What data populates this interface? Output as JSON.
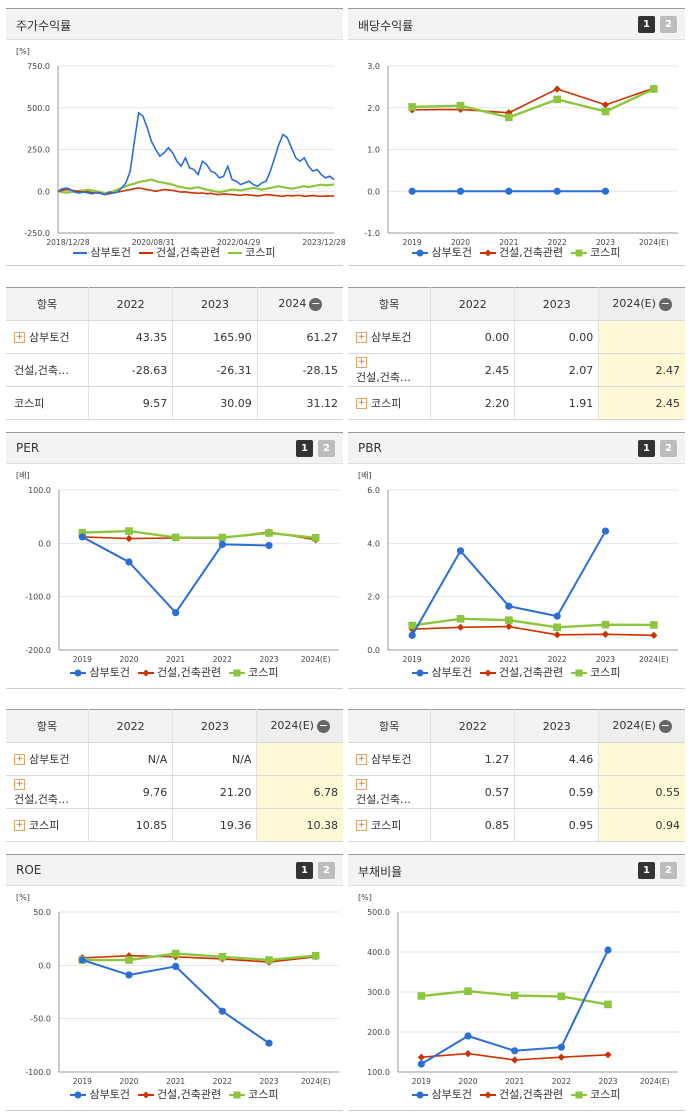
{
  "colors": {
    "sambu": "#2b6fd6",
    "industry": "#cc3300",
    "kospi": "#8cc63f"
  },
  "legend": [
    "삼부토건",
    "건설,건축관련",
    "코스피"
  ],
  "panels": {
    "stock": {
      "title": "주가수익률",
      "unit": "[%]"
    },
    "dividend": {
      "title": "배당수익률",
      "unit": "",
      "pager": [
        "1",
        "2"
      ]
    },
    "per": {
      "title": "PER",
      "unit": "[배]",
      "pager": [
        "1",
        "2"
      ]
    },
    "pbr": {
      "title": "PBR",
      "unit": "[배]",
      "pager": [
        "1",
        "2"
      ]
    },
    "roe": {
      "title": "ROE",
      "unit": "[%]",
      "pager": [
        "1",
        "2"
      ]
    },
    "debt": {
      "title": "부채비율",
      "unit": "[%]",
      "pager": [
        "1",
        "2"
      ]
    }
  },
  "tables": {
    "stock": {
      "headers": [
        "항목",
        "2022",
        "2023",
        "2024"
      ],
      "rows": [
        {
          "label": "삼부토건",
          "values": [
            "43.35",
            "165.90",
            "61.27"
          ]
        },
        {
          "label": "건설,건축…",
          "values": [
            "-28.63",
            "-26.31",
            "-28.15"
          ]
        },
        {
          "label": "코스피",
          "values": [
            "9.57",
            "30.09",
            "31.12"
          ]
        }
      ]
    },
    "dividend": {
      "headers": [
        "항목",
        "2022",
        "2023",
        "2024(E)"
      ],
      "rows": [
        {
          "label": "삼부토건",
          "values": [
            "0.00",
            "0.00",
            ""
          ]
        },
        {
          "label": "건설,건축…",
          "values": [
            "2.45",
            "2.07",
            "2.47"
          ]
        },
        {
          "label": "코스피",
          "values": [
            "2.20",
            "1.91",
            "2.45"
          ]
        }
      ]
    },
    "per": {
      "headers": [
        "항목",
        "2022",
        "2023",
        "2024(E)"
      ],
      "rows": [
        {
          "label": "삼부토건",
          "values": [
            "N/A",
            "N/A",
            ""
          ]
        },
        {
          "label": "건설,건축…",
          "values": [
            "9.76",
            "21.20",
            "6.78"
          ]
        },
        {
          "label": "코스피",
          "values": [
            "10.85",
            "19.36",
            "10.38"
          ]
        }
      ]
    },
    "pbr": {
      "headers": [
        "항목",
        "2022",
        "2023",
        "2024(E)"
      ],
      "rows": [
        {
          "label": "삼부토건",
          "values": [
            "1.27",
            "4.46",
            ""
          ]
        },
        {
          "label": "건설,건축…",
          "values": [
            "0.57",
            "0.59",
            "0.55"
          ]
        },
        {
          "label": "코스피",
          "values": [
            "0.85",
            "0.95",
            "0.94"
          ]
        }
      ]
    }
  },
  "chart_data": [
    {
      "id": "stock",
      "type": "line",
      "title": "주가수익률",
      "ylim": [
        -250,
        750
      ],
      "yticks": [
        -250,
        0,
        250,
        500,
        750
      ],
      "ytick_labels": [
        "-250.0",
        "0.0",
        "250.0",
        "500.0",
        "750.0"
      ],
      "x_labels": [
        "2018/12/28",
        "2020/08/31",
        "2022/04/29",
        "2023/12/28"
      ],
      "series": [
        {
          "name": "삼부토건",
          "values": [
            0,
            15,
            20,
            10,
            -5,
            -10,
            -5,
            -10,
            -15,
            -8,
            -10,
            -20,
            -5,
            -10,
            -5,
            20,
            50,
            120,
            300,
            470,
            450,
            380,
            300,
            250,
            210,
            230,
            260,
            230,
            180,
            150,
            200,
            140,
            130,
            100,
            180,
            160,
            120,
            110,
            80,
            90,
            150,
            70,
            60,
            40,
            50,
            60,
            40,
            30,
            50,
            60,
            120,
            200,
            280,
            340,
            320,
            260,
            200,
            180,
            200,
            150,
            120,
            130,
            100,
            80,
            90,
            70
          ]
        },
        {
          "name": "건설,건축관련",
          "values": [
            0,
            5,
            10,
            8,
            2,
            -2,
            -5,
            -3,
            -8,
            -10,
            -12,
            -20,
            -15,
            -10,
            -5,
            0,
            5,
            10,
            15,
            20,
            15,
            10,
            5,
            0,
            5,
            10,
            8,
            5,
            0,
            -5,
            -3,
            -8,
            -10,
            -12,
            -10,
            -15,
            -12,
            -18,
            -20,
            -15,
            -18,
            -20,
            -22,
            -25,
            -20,
            -22,
            -25,
            -28,
            -25,
            -20,
            -22,
            -25,
            -28,
            -30,
            -25,
            -28,
            -26,
            -25,
            -30,
            -28,
            -26,
            -28,
            -30,
            -28,
            -29,
            -28
          ]
        },
        {
          "name": "코스피",
          "values": [
            0,
            -5,
            -8,
            -5,
            0,
            2,
            5,
            8,
            5,
            0,
            -5,
            -12,
            -8,
            0,
            10,
            20,
            30,
            40,
            45,
            55,
            60,
            65,
            70,
            60,
            55,
            50,
            45,
            40,
            30,
            25,
            20,
            15,
            20,
            25,
            15,
            10,
            5,
            0,
            -5,
            0,
            5,
            10,
            8,
            5,
            10,
            15,
            20,
            15,
            10,
            15,
            20,
            25,
            30,
            25,
            20,
            15,
            20,
            25,
            30,
            25,
            30,
            35,
            40,
            35,
            38,
            40
          ]
        }
      ]
    },
    {
      "id": "dividend",
      "type": "line",
      "title": "배당수익률",
      "categories": [
        "2019",
        "2020",
        "2021",
        "2022",
        "2023",
        "2024(E)"
      ],
      "ylim": [
        -1,
        3
      ],
      "yticks": [
        -1,
        0,
        1,
        2,
        3
      ],
      "ytick_labels": [
        "-1.0",
        "0.0",
        "1.0",
        "2.0",
        "3.0"
      ],
      "series": [
        {
          "name": "삼부토건",
          "values": [
            0.0,
            0.0,
            0.0,
            0.0,
            0.0,
            null
          ]
        },
        {
          "name": "건설,건축관련",
          "values": [
            1.95,
            1.96,
            1.88,
            2.45,
            2.07,
            2.47
          ]
        },
        {
          "name": "코스피",
          "values": [
            2.02,
            2.05,
            1.77,
            2.2,
            1.91,
            2.45
          ]
        }
      ]
    },
    {
      "id": "per",
      "type": "line",
      "title": "PER",
      "categories": [
        "2019",
        "2020",
        "2021",
        "2022",
        "2023",
        "2024(E)"
      ],
      "ylim": [
        -200,
        100
      ],
      "yticks": [
        -200,
        -100,
        0,
        100
      ],
      "ytick_labels": [
        "-200.0",
        "-100.0",
        "0.0",
        "100.0"
      ],
      "series": [
        {
          "name": "삼부토건",
          "values": [
            12,
            -35,
            -130,
            -2,
            -4,
            null
          ]
        },
        {
          "name": "건설,건축관련",
          "values": [
            12,
            9,
            10,
            9.76,
            21.2,
            6.78
          ]
        },
        {
          "name": "코스피",
          "values": [
            20,
            23,
            11,
            10.85,
            19.36,
            10.38
          ]
        }
      ]
    },
    {
      "id": "pbr",
      "type": "line",
      "title": "PBR",
      "categories": [
        "2019",
        "2020",
        "2021",
        "2022",
        "2023",
        "2024(E)"
      ],
      "ylim": [
        0,
        6
      ],
      "yticks": [
        0,
        2,
        4,
        6
      ],
      "ytick_labels": [
        "0.0",
        "2.0",
        "4.0",
        "6.0"
      ],
      "series": [
        {
          "name": "삼부토건",
          "values": [
            0.55,
            3.72,
            1.64,
            1.27,
            4.46,
            null
          ]
        },
        {
          "name": "건설,건축관련",
          "values": [
            0.78,
            0.85,
            0.88,
            0.57,
            0.59,
            0.55
          ]
        },
        {
          "name": "코스피",
          "values": [
            0.92,
            1.17,
            1.12,
            0.85,
            0.95,
            0.94
          ]
        }
      ]
    },
    {
      "id": "roe",
      "type": "line",
      "title": "ROE",
      "categories": [
        "2019",
        "2020",
        "2021",
        "2022",
        "2023",
        "2024(E)"
      ],
      "ylim": [
        -100,
        50
      ],
      "yticks": [
        -100,
        -50,
        0,
        50
      ],
      "ytick_labels": [
        "-100.0",
        "-50.0",
        "0.0",
        "50.0"
      ],
      "series": [
        {
          "name": "삼부토건",
          "values": [
            5,
            -9,
            -1,
            -43,
            -73,
            null
          ]
        },
        {
          "name": "건설,건축관련",
          "values": [
            7,
            9,
            8,
            6,
            3,
            8
          ]
        },
        {
          "name": "코스피",
          "values": [
            5,
            5,
            11,
            8,
            5,
            9
          ]
        }
      ]
    },
    {
      "id": "debt",
      "type": "line",
      "title": "부채비율",
      "categories": [
        "2019",
        "2020",
        "2021",
        "2022",
        "2023",
        "2024(E)"
      ],
      "ylim": [
        100,
        500
      ],
      "yticks": [
        100,
        200,
        300,
        400,
        500
      ],
      "ytick_labels": [
        "100.0",
        "200.0",
        "300.0",
        "400.0",
        "500.0"
      ],
      "series": [
        {
          "name": "삼부토건",
          "values": [
            120,
            190,
            153,
            162,
            405,
            null
          ]
        },
        {
          "name": "건설,건축관련",
          "values": [
            137,
            146,
            130,
            137,
            143,
            null
          ]
        },
        {
          "name": "코스피",
          "values": [
            290,
            302,
            291,
            289,
            269,
            null
          ]
        }
      ]
    }
  ]
}
